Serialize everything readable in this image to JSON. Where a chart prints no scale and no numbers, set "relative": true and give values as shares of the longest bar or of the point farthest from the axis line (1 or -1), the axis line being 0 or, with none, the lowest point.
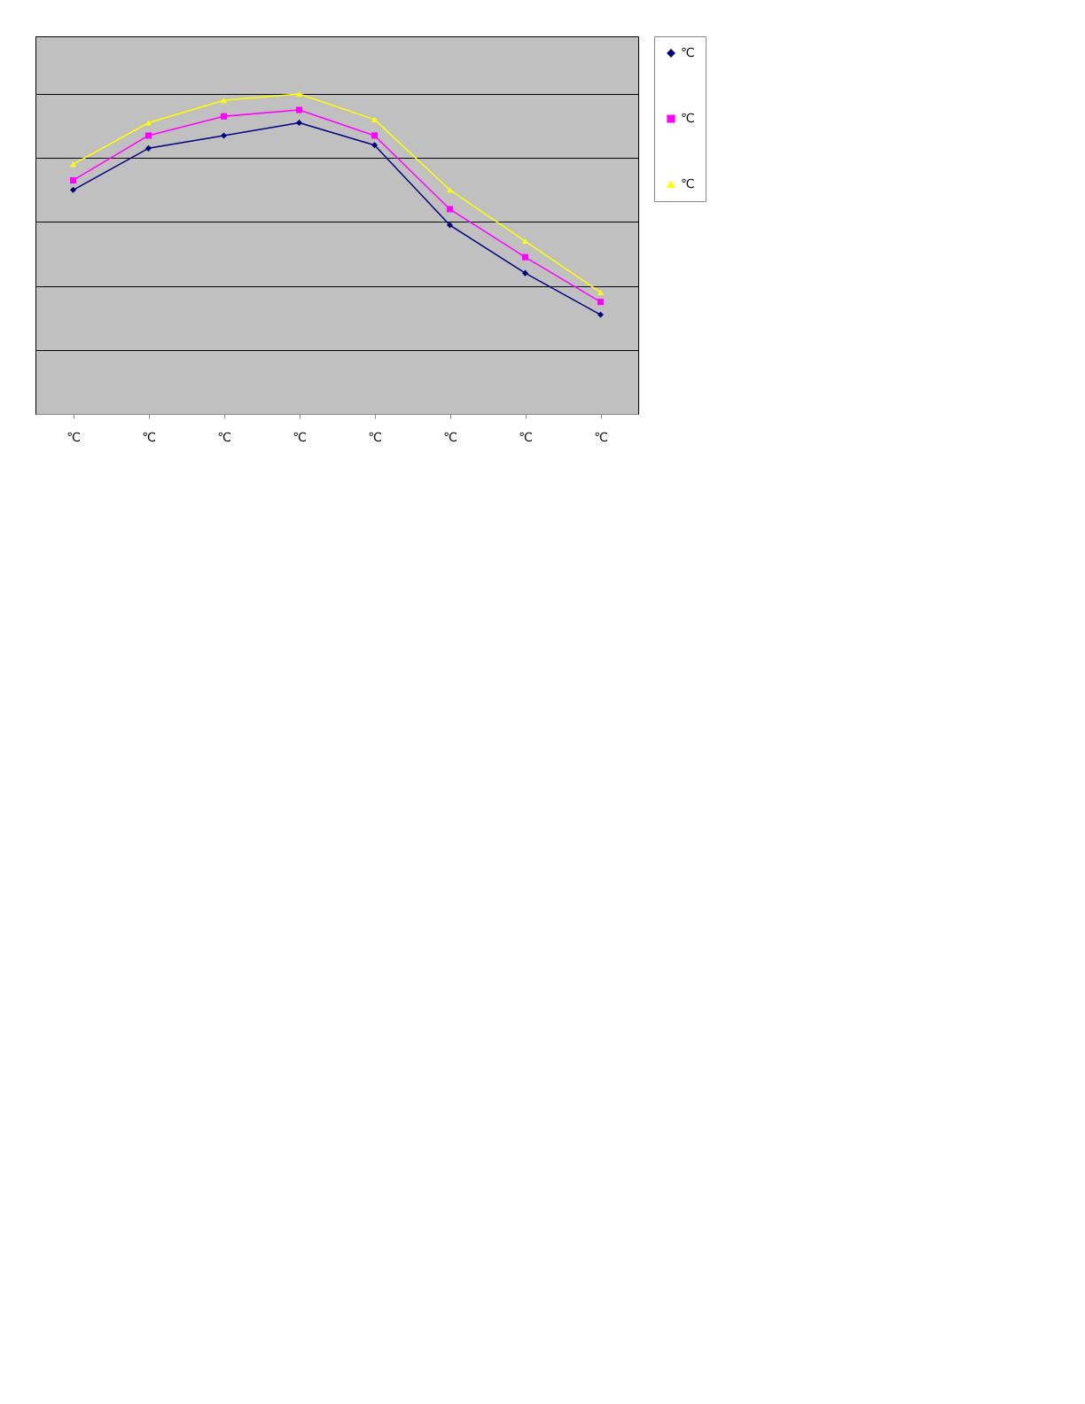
{
  "chart_data": {
    "type": "line",
    "relative": true,
    "categories": [
      "℃",
      "℃",
      "℃",
      "℃",
      "℃",
      "℃",
      "℃",
      "℃"
    ],
    "series": [
      {
        "name": "℃",
        "color": "#000080",
        "marker": "diamond",
        "values": [
          0.7,
          0.83,
          0.87,
          0.91,
          0.84,
          0.59,
          0.44,
          0.31
        ]
      },
      {
        "name": "℃",
        "color": "#ff00ff",
        "marker": "square",
        "values": [
          0.73,
          0.87,
          0.93,
          0.95,
          0.87,
          0.64,
          0.49,
          0.35
        ]
      },
      {
        "name": "℃",
        "color": "#ffff00",
        "marker": "triangle",
        "values": [
          0.78,
          0.91,
          0.98,
          1,
          0.92,
          0.7,
          0.54,
          0.38
        ]
      }
    ],
    "grid": "y",
    "legend": "right",
    "line_style": "solid"
  }
}
